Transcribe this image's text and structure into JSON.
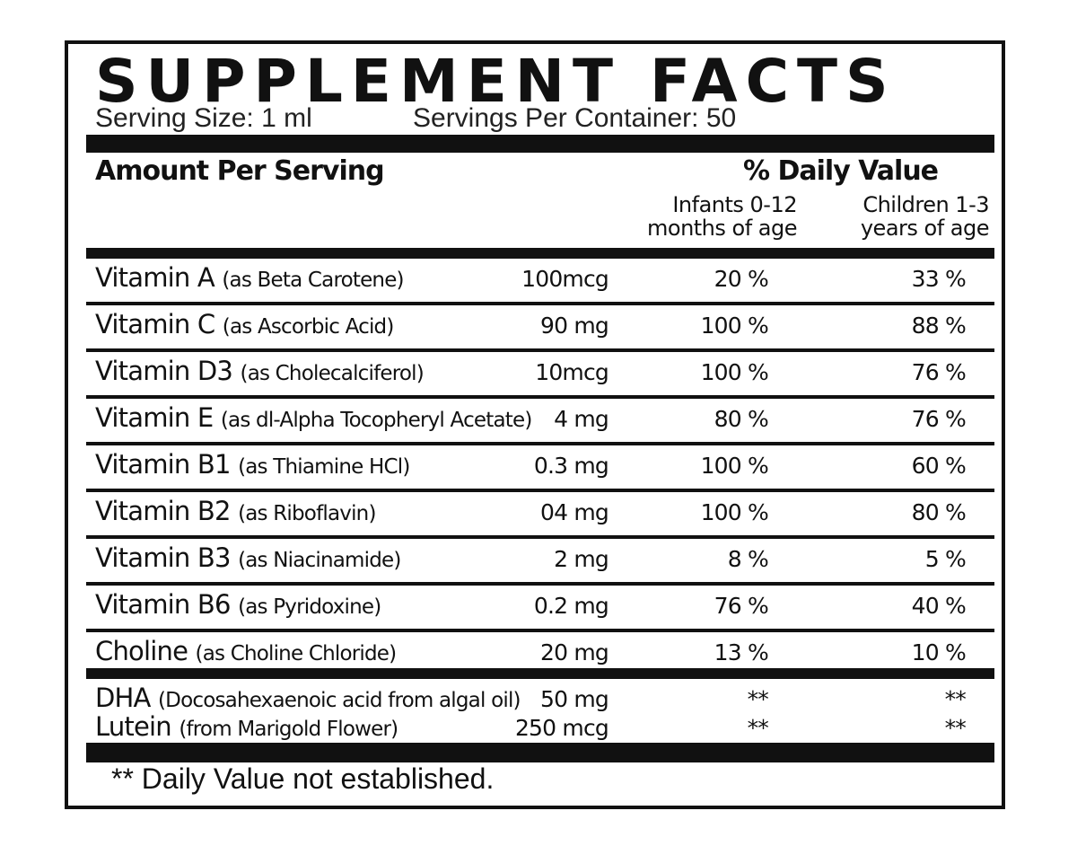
{
  "title": "SUPPLEMENT FACTS",
  "serving_size": "Serving Size: 1 ml",
  "servings_per_container": "Servings Per Container: 50",
  "header": {
    "amount_per_serving": "Amount Per Serving",
    "daily_value": "% Daily Value",
    "infants_line1": "Infants 0-12",
    "infants_line2": "months of age",
    "children_line1": "Children 1-3",
    "children_line2": "years of age"
  },
  "nutrients": [
    {
      "name": "Vitamin A",
      "source": "(as Beta Carotene)",
      "amount": "100mcg",
      "infants": "20 %",
      "children": "33 %"
    },
    {
      "name": "Vitamin C",
      "source": "(as Ascorbic Acid)",
      "amount": "90 mg",
      "infants": "100 %",
      "children": "88 %"
    },
    {
      "name": "Vitamin D3",
      "source": "(as Cholecalciferol)",
      "amount": "10mcg",
      "infants": "100 %",
      "children": "76 %"
    },
    {
      "name": "Vitamin E",
      "source": "(as dl-Alpha Tocopheryl Acetate)",
      "amount": "4 mg",
      "infants": "80 %",
      "children": "76 %"
    },
    {
      "name": "Vitamin B1",
      "source": "(as Thiamine HCl)",
      "amount": "0.3 mg",
      "infants": "100 %",
      "children": "60 %"
    },
    {
      "name": "Vitamin B2",
      "source": "(as Riboflavin)",
      "amount": "04 mg",
      "infants": "100 %",
      "children": "80 %"
    },
    {
      "name": "Vitamin B3",
      "source": "(as Niacinamide)",
      "amount": "2 mg",
      "infants": "8 %",
      "children": "5 %"
    },
    {
      "name": "Vitamin B6",
      "source": "(as Pyridoxine)",
      "amount": "0.2 mg",
      "infants": "76 %",
      "children": "40 %"
    },
    {
      "name": "Choline",
      "source": "(as Choline Chloride)",
      "amount": "20 mg",
      "infants": "13 %",
      "children": "10 %"
    }
  ],
  "other": [
    {
      "name": "DHA",
      "source": "(Docosahexaenoic acid from algal oil)",
      "amount": "50 mg",
      "infants": "**",
      "children": "**"
    },
    {
      "name": "Lutein",
      "source": "(from Marigold Flower)",
      "amount": "250 mcg",
      "infants": "**",
      "children": "**"
    }
  ],
  "footnote": "** Daily Value not established."
}
